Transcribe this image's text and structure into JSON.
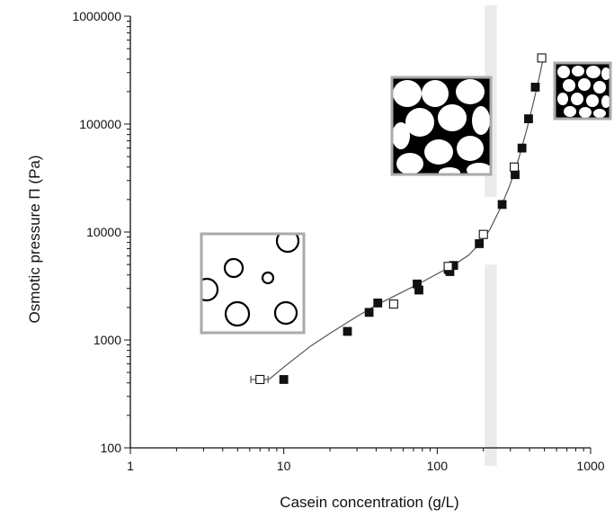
{
  "chart_data": {
    "type": "scatter",
    "title": "",
    "xlabel": "Casein concentration (g/L)",
    "ylabel": "Osmotic pressure Π (Pa)",
    "xscale": "log",
    "yscale": "log",
    "xlim": [
      1,
      1000
    ],
    "ylim": [
      100,
      1000000
    ],
    "grid": false,
    "legend": "none",
    "x_ticks": [
      "1",
      "10",
      "100",
      "1000"
    ],
    "y_ticks": [
      "100",
      "1000",
      "10000",
      "100000",
      "1000000"
    ],
    "series": [
      {
        "marker": "filled-square",
        "color": "#111111",
        "points": [
          {
            "x": 10,
            "y": 430
          },
          {
            "x": 26,
            "y": 1200
          },
          {
            "x": 36,
            "y": 1800
          },
          {
            "x": 41,
            "y": 2200
          },
          {
            "x": 74,
            "y": 3300
          },
          {
            "x": 76,
            "y": 2900
          },
          {
            "x": 118,
            "y": 4500
          },
          {
            "x": 121,
            "y": 4300
          },
          {
            "x": 128,
            "y": 4900
          },
          {
            "x": 188,
            "y": 7800
          },
          {
            "x": 265,
            "y": 18000
          },
          {
            "x": 322,
            "y": 34000
          },
          {
            "x": 357,
            "y": 60000
          },
          {
            "x": 394,
            "y": 112000
          },
          {
            "x": 436,
            "y": 220000
          }
        ]
      },
      {
        "marker": "open-square",
        "color": "#111111",
        "points": [
          {
            "x": 7,
            "y": 430,
            "xerr": [
              6.1,
              7.9
            ]
          },
          {
            "x": 52,
            "y": 2150
          },
          {
            "x": 118,
            "y": 4800
          },
          {
            "x": 200,
            "y": 9500
          },
          {
            "x": 318,
            "y": 40000
          },
          {
            "x": 480,
            "y": 410000
          }
        ]
      }
    ],
    "fit_curve": [
      [
        8,
        430
      ],
      [
        10,
        560
      ],
      [
        15,
        880
      ],
      [
        20,
        1150
      ],
      [
        30,
        1650
      ],
      [
        40,
        2100
      ],
      [
        60,
        2800
      ],
      [
        80,
        3450
      ],
      [
        100,
        4100
      ],
      [
        130,
        5000
      ],
      [
        160,
        6100
      ],
      [
        190,
        7800
      ],
      [
        220,
        10500
      ],
      [
        260,
        17000
      ],
      [
        300,
        28000
      ],
      [
        340,
        48000
      ],
      [
        380,
        85000
      ],
      [
        420,
        150000
      ],
      [
        460,
        260000
      ],
      [
        490,
        400000
      ]
    ],
    "shaded_band": {
      "x_range": [
        160,
        245
      ],
      "gap_y_range": [
        5000,
        15000
      ],
      "color": "#ebebeb"
    },
    "insets": [
      {
        "kind": "dilute-spheres",
        "border": "#aaaaaa"
      },
      {
        "kind": "packed-deformed-cells",
        "border": "#aaaaaa"
      },
      {
        "kind": "compressed-polyhedra",
        "border": "#aaaaaa"
      }
    ]
  }
}
